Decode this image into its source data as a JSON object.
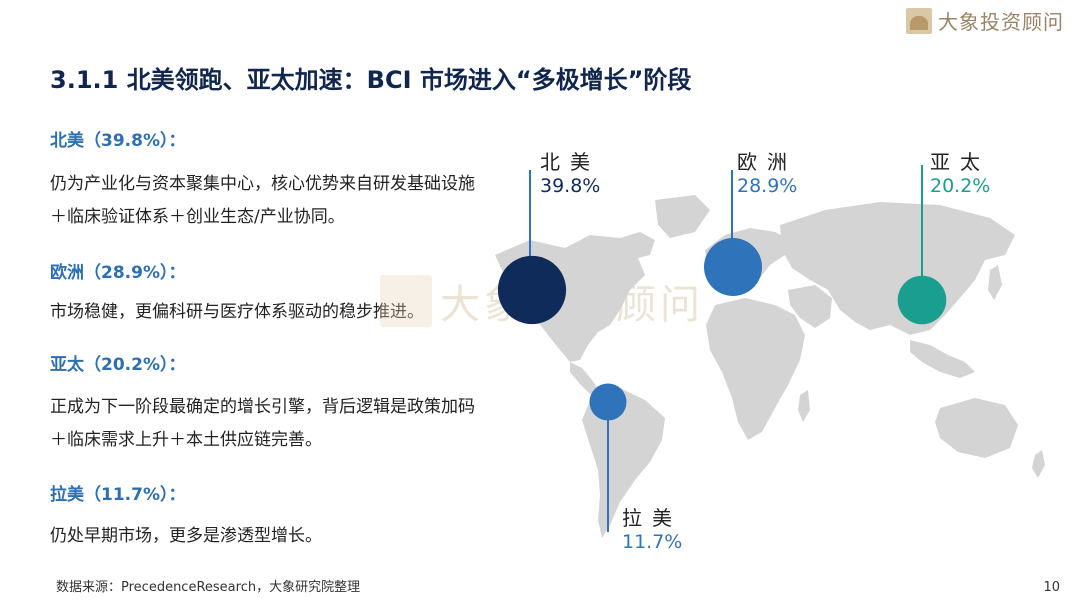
{
  "brand": {
    "name": "大象投资顾问",
    "logo_icon": "elephant-logo-icon"
  },
  "title": "3.1.1 北美领跑、亚太加速：BCI 市场进入“多极增长”阶段",
  "regions": [
    {
      "heading": "北美（39.8%）：",
      "desc": "仍为产业化与资本聚集中心，核心优势来自研发基础设施＋临床验证体系＋创业生态/产业协同。"
    },
    {
      "heading": "欧洲（28.9%）：",
      "desc": "市场稳健，更偏科研与医疗体系驱动的稳步推进。"
    },
    {
      "heading": "亚太（20.2%）：",
      "desc": "正成为下一阶段最确定的增长引擎，背后逻辑是政策加码＋临床需求上升＋本土供应链完善。"
    },
    {
      "heading": "拉美（11.7%）：",
      "desc": "仍处早期市场，更多是渗透型增长。"
    }
  ],
  "map": {
    "callouts": [
      {
        "name": "北美",
        "pct": "39.8%",
        "share": 39.8,
        "color": "#0f2b5a"
      },
      {
        "name": "欧洲",
        "pct": "28.9%",
        "share": 28.9,
        "color": "#2f73ba"
      },
      {
        "name": "亚太",
        "pct": "20.2%",
        "share": 20.2,
        "color": "#1a9e8f"
      },
      {
        "name": "拉美",
        "pct": "11.7%",
        "share": 11.7,
        "color": "#2f73ba"
      }
    ]
  },
  "watermark": "大象投资顾问",
  "source": "数据来源：PrecedenceResearch，大象研究院整理",
  "page_number": "10"
}
